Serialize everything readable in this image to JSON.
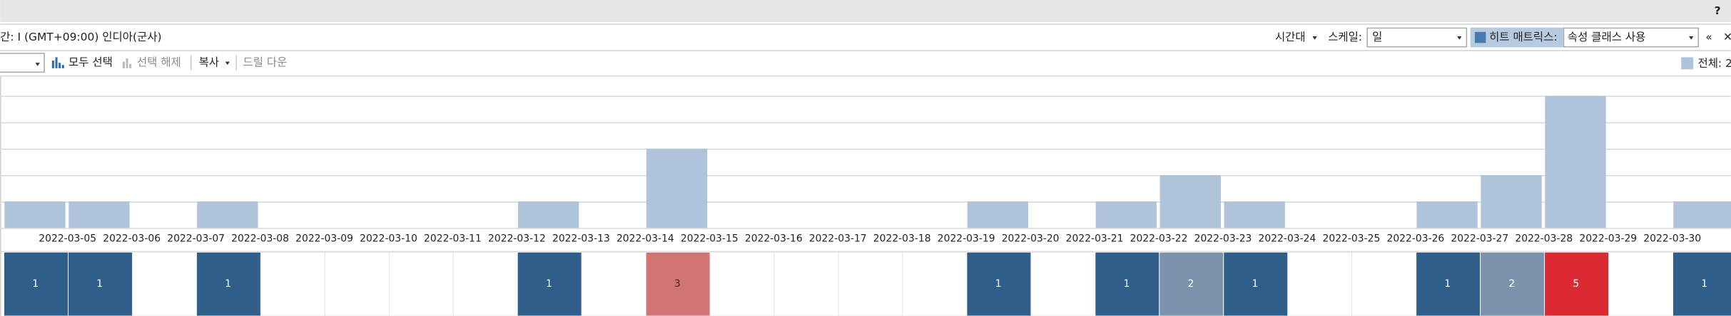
{
  "toolbar": {
    "help": "?",
    "timezone_label": "간: I (GMT+09:00) 인디아(군사)",
    "timezone_menu": "시간대",
    "scale_label": "스케일:",
    "scale_value": "일",
    "heat_label": "히트 매트릭스:",
    "heat_value": "속성 클래스 사용",
    "collapse": "«",
    "close": "✕",
    "select_all": "모두 선택",
    "deselect": "선택 해제",
    "copy": "복사",
    "drill_down": "드릴 다운",
    "legend_total": "전체: 2"
  },
  "chart_data": {
    "type": "histogram",
    "color": "#afc4da",
    "categories": [
      null,
      "2022-03-05",
      "2022-03-06",
      "2022-03-07",
      "2022-03-08",
      "2022-03-09",
      "2022-03-10",
      "2022-03-11",
      "2022-03-12",
      "2022-03-13",
      "2022-03-14",
      "2022-03-15",
      "2022-03-16",
      "2022-03-17",
      "2022-03-18",
      "2022-03-19",
      "2022-03-20",
      "2022-03-21",
      "2022-03-22",
      "2022-03-23",
      "2022-03-24",
      "2022-03-25",
      "2022-03-26",
      "2022-03-27",
      "2022-03-28",
      "2022-03-29",
      "2022-03-30"
    ],
    "values": [
      1,
      1,
      0,
      1,
      0,
      0,
      0,
      0,
      1,
      0,
      3,
      0,
      0,
      0,
      0,
      1,
      0,
      1,
      2,
      1,
      0,
      0,
      1,
      2,
      5,
      0,
      1
    ],
    "ylim": [
      0,
      5
    ],
    "yticks": [
      0,
      1,
      2,
      3,
      4,
      5
    ],
    "grid": true,
    "heat_colors": {
      "1": "#2f5e8a",
      "2": "#7b93ab",
      "3": "#d07474",
      "5": "#db2a31"
    }
  }
}
